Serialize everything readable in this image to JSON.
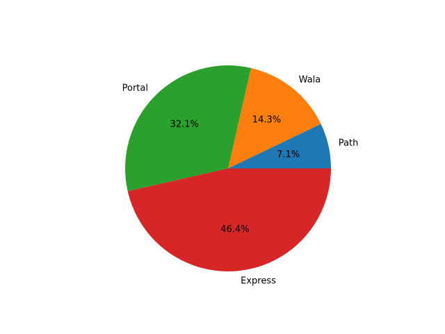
{
  "chart_data": {
    "type": "pie",
    "categories": [
      "Path",
      "Wala",
      "Portal",
      "Express"
    ],
    "values": [
      7.1,
      14.3,
      32.1,
      46.4
    ],
    "percent_labels": [
      "7.1%",
      "14.3%",
      "32.1%",
      "46.4%"
    ],
    "colors": [
      "#1f77b4",
      "#ff7f0e",
      "#2ca02c",
      "#d62728"
    ],
    "start_angle_deg": 0,
    "direction": "counterclockwise",
    "title": "",
    "legend": "none"
  }
}
